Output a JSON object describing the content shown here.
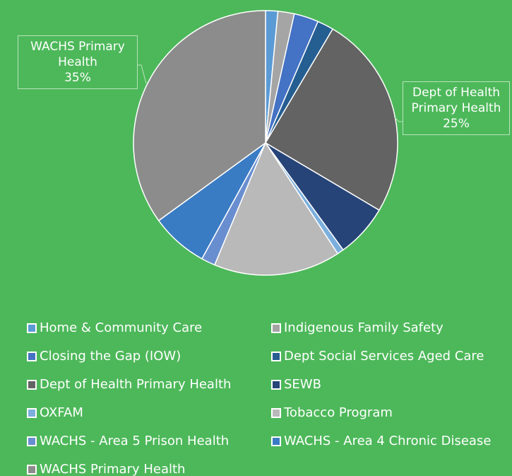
{
  "chart_data": {
    "type": "pie",
    "categories": [
      "Home & Community Care",
      "Indigenous Family Safety",
      "Closing the Gap (IOW)",
      "Dept Social Services Aged Care",
      "Dept of Health Primary Health",
      "SEWB",
      "OXFAM",
      "Tobacco Program",
      "WACHS - Area 5 Prison Health",
      "WACHS - Area 4 Chronic Disease",
      "WACHS Primary Health"
    ],
    "values": [
      1.5,
      2,
      3,
      2,
      25,
      6.5,
      0.8,
      15.5,
      1.7,
      7,
      35
    ],
    "value_labels": [
      null,
      null,
      null,
      null,
      "25%",
      null,
      null,
      null,
      null,
      null,
      "35%"
    ],
    "colors": [
      "#5b9bd5",
      "#a5a5a5",
      "#4472c4",
      "#255e91",
      "#636363",
      "#264478",
      "#7cafdd",
      "#b9b9b9",
      "#698ed0",
      "#3a7cc4",
      "#8c8c8c"
    ],
    "legend": "bottom"
  }
}
